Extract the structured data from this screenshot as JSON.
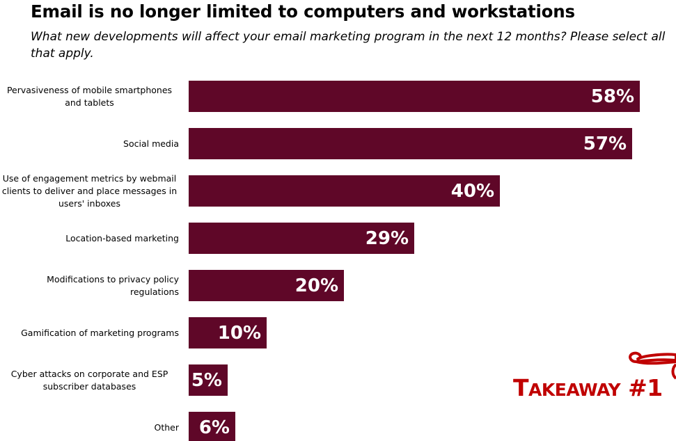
{
  "chart_data": {
    "type": "bar",
    "orientation": "horizontal",
    "title": "Email is no longer limited to computers and workstations",
    "subtitle": "What new developments will affect your email marketing program in the next 12 months?  Please select all that apply.",
    "categories": [
      "Pervasiveness of mobile smartphones and tablets",
      "Social media",
      "Use of engagement metrics by webmail clients to deliver and place messages in users' inboxes",
      "Location-based marketing",
      "Modifications to privacy policy regulations",
      "Gamification of marketing programs",
      "Cyber attacks on corporate and ESP subscriber databases",
      "Other"
    ],
    "values": [
      58,
      57,
      40,
      29,
      20,
      10,
      5,
      6
    ],
    "value_labels": [
      "58%",
      "57%",
      "40%",
      "29%",
      "20%",
      "10%",
      "5%",
      "6%"
    ],
    "unit": "%",
    "bar_color": "#5f0728",
    "xlim": [
      0,
      58
    ],
    "xlabel": "",
    "ylabel": "",
    "grid": false
  },
  "takeaway": {
    "first_letter": "T",
    "rest": "AKEAWAY",
    "number": "#1",
    "color": "#c00000",
    "icon": "scroll-icon"
  }
}
